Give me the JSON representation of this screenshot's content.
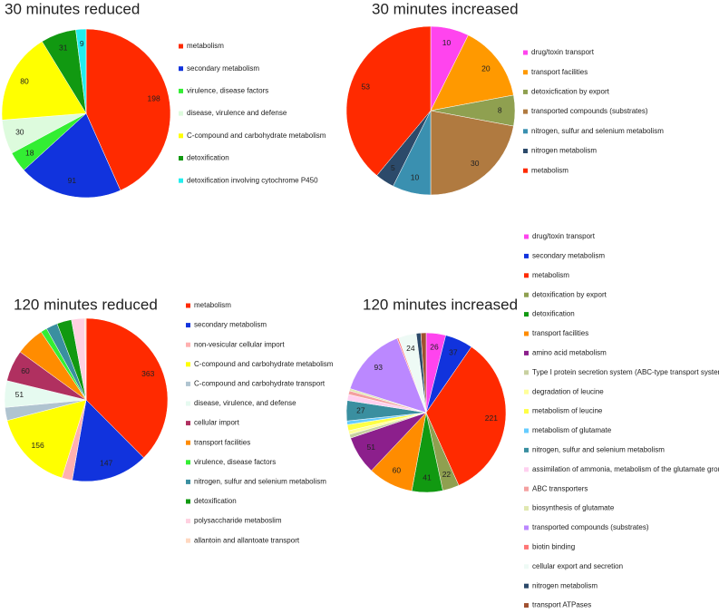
{
  "chart_data": [
    {
      "type": "pie",
      "title": "30 minutes reduced",
      "categories": [
        "metabolism",
        "secondary metabolism",
        "virulence, disease factors",
        "disease, virulence and defense",
        "C-compound and carbohydrate metabolism",
        "detoxification",
        "detoxification involving cytochrome P450"
      ],
      "values": [
        198,
        91,
        18,
        30,
        80,
        31,
        9
      ],
      "value_labels": [
        "198",
        "91",
        "18",
        "30",
        "80",
        "31",
        "9"
      ],
      "colors": [
        "#ff2a00",
        "#1133dd",
        "#33ee33",
        "#ddfbdd",
        "#ffff00",
        "#119911",
        "#22eeee"
      ]
    },
    {
      "type": "pie",
      "title": "30 minutes increased",
      "categories": [
        "drug/toxin transport",
        "transport facilities",
        "detoxicfication by export",
        "transported compounds (substrates)",
        "nitrogen, sulfur and selenium metabolism",
        "nitrogen metabolism",
        "metabolism"
      ],
      "values": [
        10,
        20,
        8,
        30,
        10,
        5,
        53
      ],
      "value_labels": [
        "10",
        "20",
        "8",
        "30",
        "10",
        "5",
        "53"
      ],
      "colors": [
        "#ff44ee",
        "#ff9900",
        "#8fa050",
        "#b07a40",
        "#3a90b0",
        "#2c4a6a",
        "#ff2a00"
      ]
    },
    {
      "type": "pie",
      "title": "120 minutes reduced",
      "categories": [
        "metabolism",
        "secondary metabolism",
        "non-vesicular cellular import",
        "C-compound and carbohydrate metabolism",
        "C-compound and carbohydrate transport",
        "disease, virulence, and defense",
        "cellular import",
        "transport facilities",
        "virulence, disease factors",
        "nitrogen, sulfur and selenium metabolism",
        "detoxification",
        "polysaccharide metaboslim",
        "allantoin and allantoate transport"
      ],
      "values": [
        363,
        147,
        20,
        156,
        25,
        51,
        60,
        55,
        12,
        22,
        28,
        25,
        3
      ],
      "value_labels": [
        "363",
        "147",
        null,
        "156",
        null,
        "51",
        "60",
        null,
        null,
        null,
        null,
        null,
        null
      ],
      "colors": [
        "#ff2a00",
        "#1133dd",
        "#ffb0b0",
        "#ffff00",
        "#b0c4d0",
        "#e6faf0",
        "#b03060",
        "#ff8c00",
        "#33ee33",
        "#3a8fa0",
        "#119911",
        "#ffd0e0",
        "#ffd8c0"
      ]
    },
    {
      "type": "pie",
      "title": "120 minutes increased",
      "categories": [
        "drug/toxin transport",
        "secondary metabolism",
        "metabolism",
        "detoxification by export",
        "detoxification",
        "transport facilities",
        "amino acid metabolism",
        "Type I protein secretion system (ABC-type transport systems)",
        "degradation of leucine",
        "metabolism of leucine",
        "metabolism of glutamate",
        "nitrogen, sulfur and selenium metabolism",
        "assimilation of ammonia, metabolism of the glutamate group",
        "ABC transporters",
        "biosynthesis of glutamate",
        "transported compounds (substrates)",
        "biotin binding",
        "cellular export and secretion",
        "nitrogen metabolism",
        "transport ATPases"
      ],
      "values": [
        26,
        37,
        221,
        22,
        41,
        60,
        51,
        5,
        5,
        8,
        5,
        27,
        8,
        5,
        3,
        93,
        2,
        24,
        6,
        7
      ],
      "value_labels": [
        "26",
        "37",
        "221",
        "22",
        "41",
        "60",
        "51",
        null,
        null,
        null,
        null,
        "27",
        null,
        null,
        null,
        "93",
        null,
        "24",
        null,
        null
      ],
      "colors": [
        "#ff44ee",
        "#1133dd",
        "#ff2a00",
        "#8fa050",
        "#119911",
        "#ff8c00",
        "#8c1f8c",
        "#c8d0a0",
        "#ffff99",
        "#ffff44",
        "#66ccff",
        "#3a8fa0",
        "#ffd0f0",
        "#f4a0a0",
        "#e0e8b0",
        "#bb88ff",
        "#ff7777",
        "#eefaf5",
        "#2c4a6a",
        "#a05030"
      ]
    }
  ]
}
